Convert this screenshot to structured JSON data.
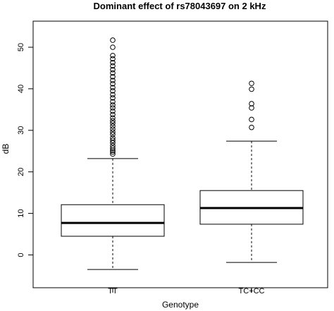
{
  "chart_data": {
    "type": "box",
    "title": "Dominant effect of rs78043697 on 2 kHz",
    "xlabel": "Genotype",
    "ylabel": "dB",
    "ylim": [
      -4,
      54
    ],
    "yticks": [
      "0",
      "10",
      "20",
      "30",
      "40",
      "50"
    ],
    "ytick_values": [
      0,
      10,
      20,
      30,
      40,
      50
    ],
    "grid": false,
    "categories": [
      "TT",
      "TC+CC"
    ],
    "boxes": [
      {
        "label": "TT",
        "whisker_low": -3.5,
        "q1": 4.5,
        "median": 7.7,
        "q3": 12.1,
        "whisker_high": 23.2,
        "outliers": [
          24.3,
          24.8,
          25.2,
          25.7,
          26.3,
          27.0,
          27.6,
          28.2,
          29.0,
          29.6,
          30.3,
          31.0,
          31.7,
          32.3,
          33.0,
          33.8,
          34.6,
          35.4,
          36.1,
          36.9,
          37.8,
          38.6,
          39.5,
          40.3,
          41.2,
          42.0,
          42.9,
          43.8,
          44.6,
          45.5,
          46.3,
          47.2,
          48.0,
          50.0,
          51.7
        ]
      },
      {
        "label": "TC+CC",
        "whisker_low": -1.8,
        "q1": 7.4,
        "median": 11.3,
        "q3": 15.5,
        "whisker_high": 27.4,
        "outliers": [
          30.7,
          32.6,
          35.4,
          36.4,
          39.9,
          41.3
        ]
      }
    ]
  }
}
